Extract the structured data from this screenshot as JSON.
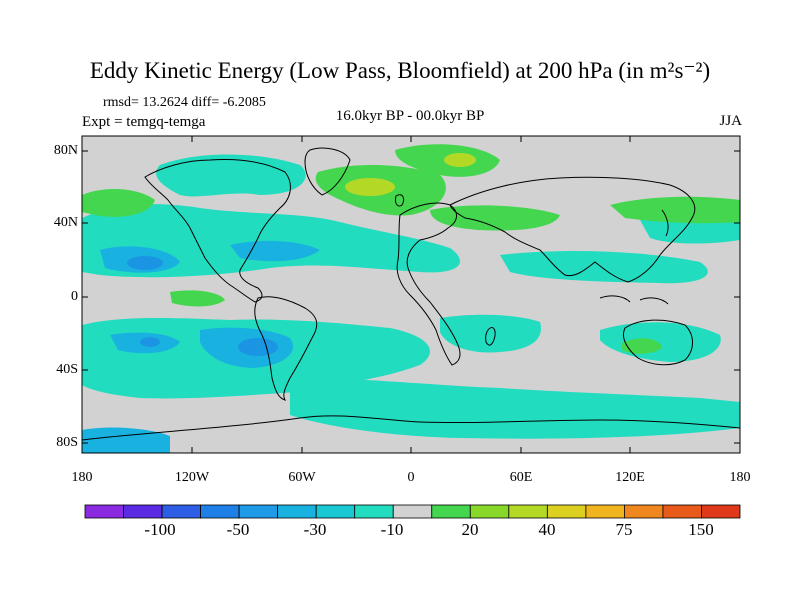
{
  "title": "Eddy Kinetic Energy (Low Pass, Bloomfield) at 200 hPa (in m²s⁻²)",
  "stats": "rmsd= 13.2624  diff= -6.2085",
  "expt": "Expt = temgq-temga",
  "period": "16.0kyr BP - 00.0kyr BP",
  "season": "JJA",
  "lat_ticks": [
    "80N",
    "40N",
    "0",
    "40S",
    "80S"
  ],
  "lon_ticks": [
    "180",
    "120W",
    "60W",
    "0",
    "60E",
    "120E",
    "180"
  ],
  "colorbar": {
    "labels": [
      "-100",
      "-50",
      "-30",
      "-10",
      "20",
      "40",
      "75",
      "150"
    ],
    "colors": [
      "#8a2be2",
      "#5a2be2",
      "#2f5ee6",
      "#1e7fe6",
      "#1f9ae6",
      "#19b2e0",
      "#19c8d2",
      "#22dcc0",
      "#d2d2d2",
      "#44d64e",
      "#88d82a",
      "#b4d826",
      "#dcd020",
      "#f0b41e",
      "#f0861e",
      "#e85a1a",
      "#e0381a"
    ]
  },
  "colors": {
    "land_mask": "#d2d2d2",
    "coast": "#000000"
  }
}
